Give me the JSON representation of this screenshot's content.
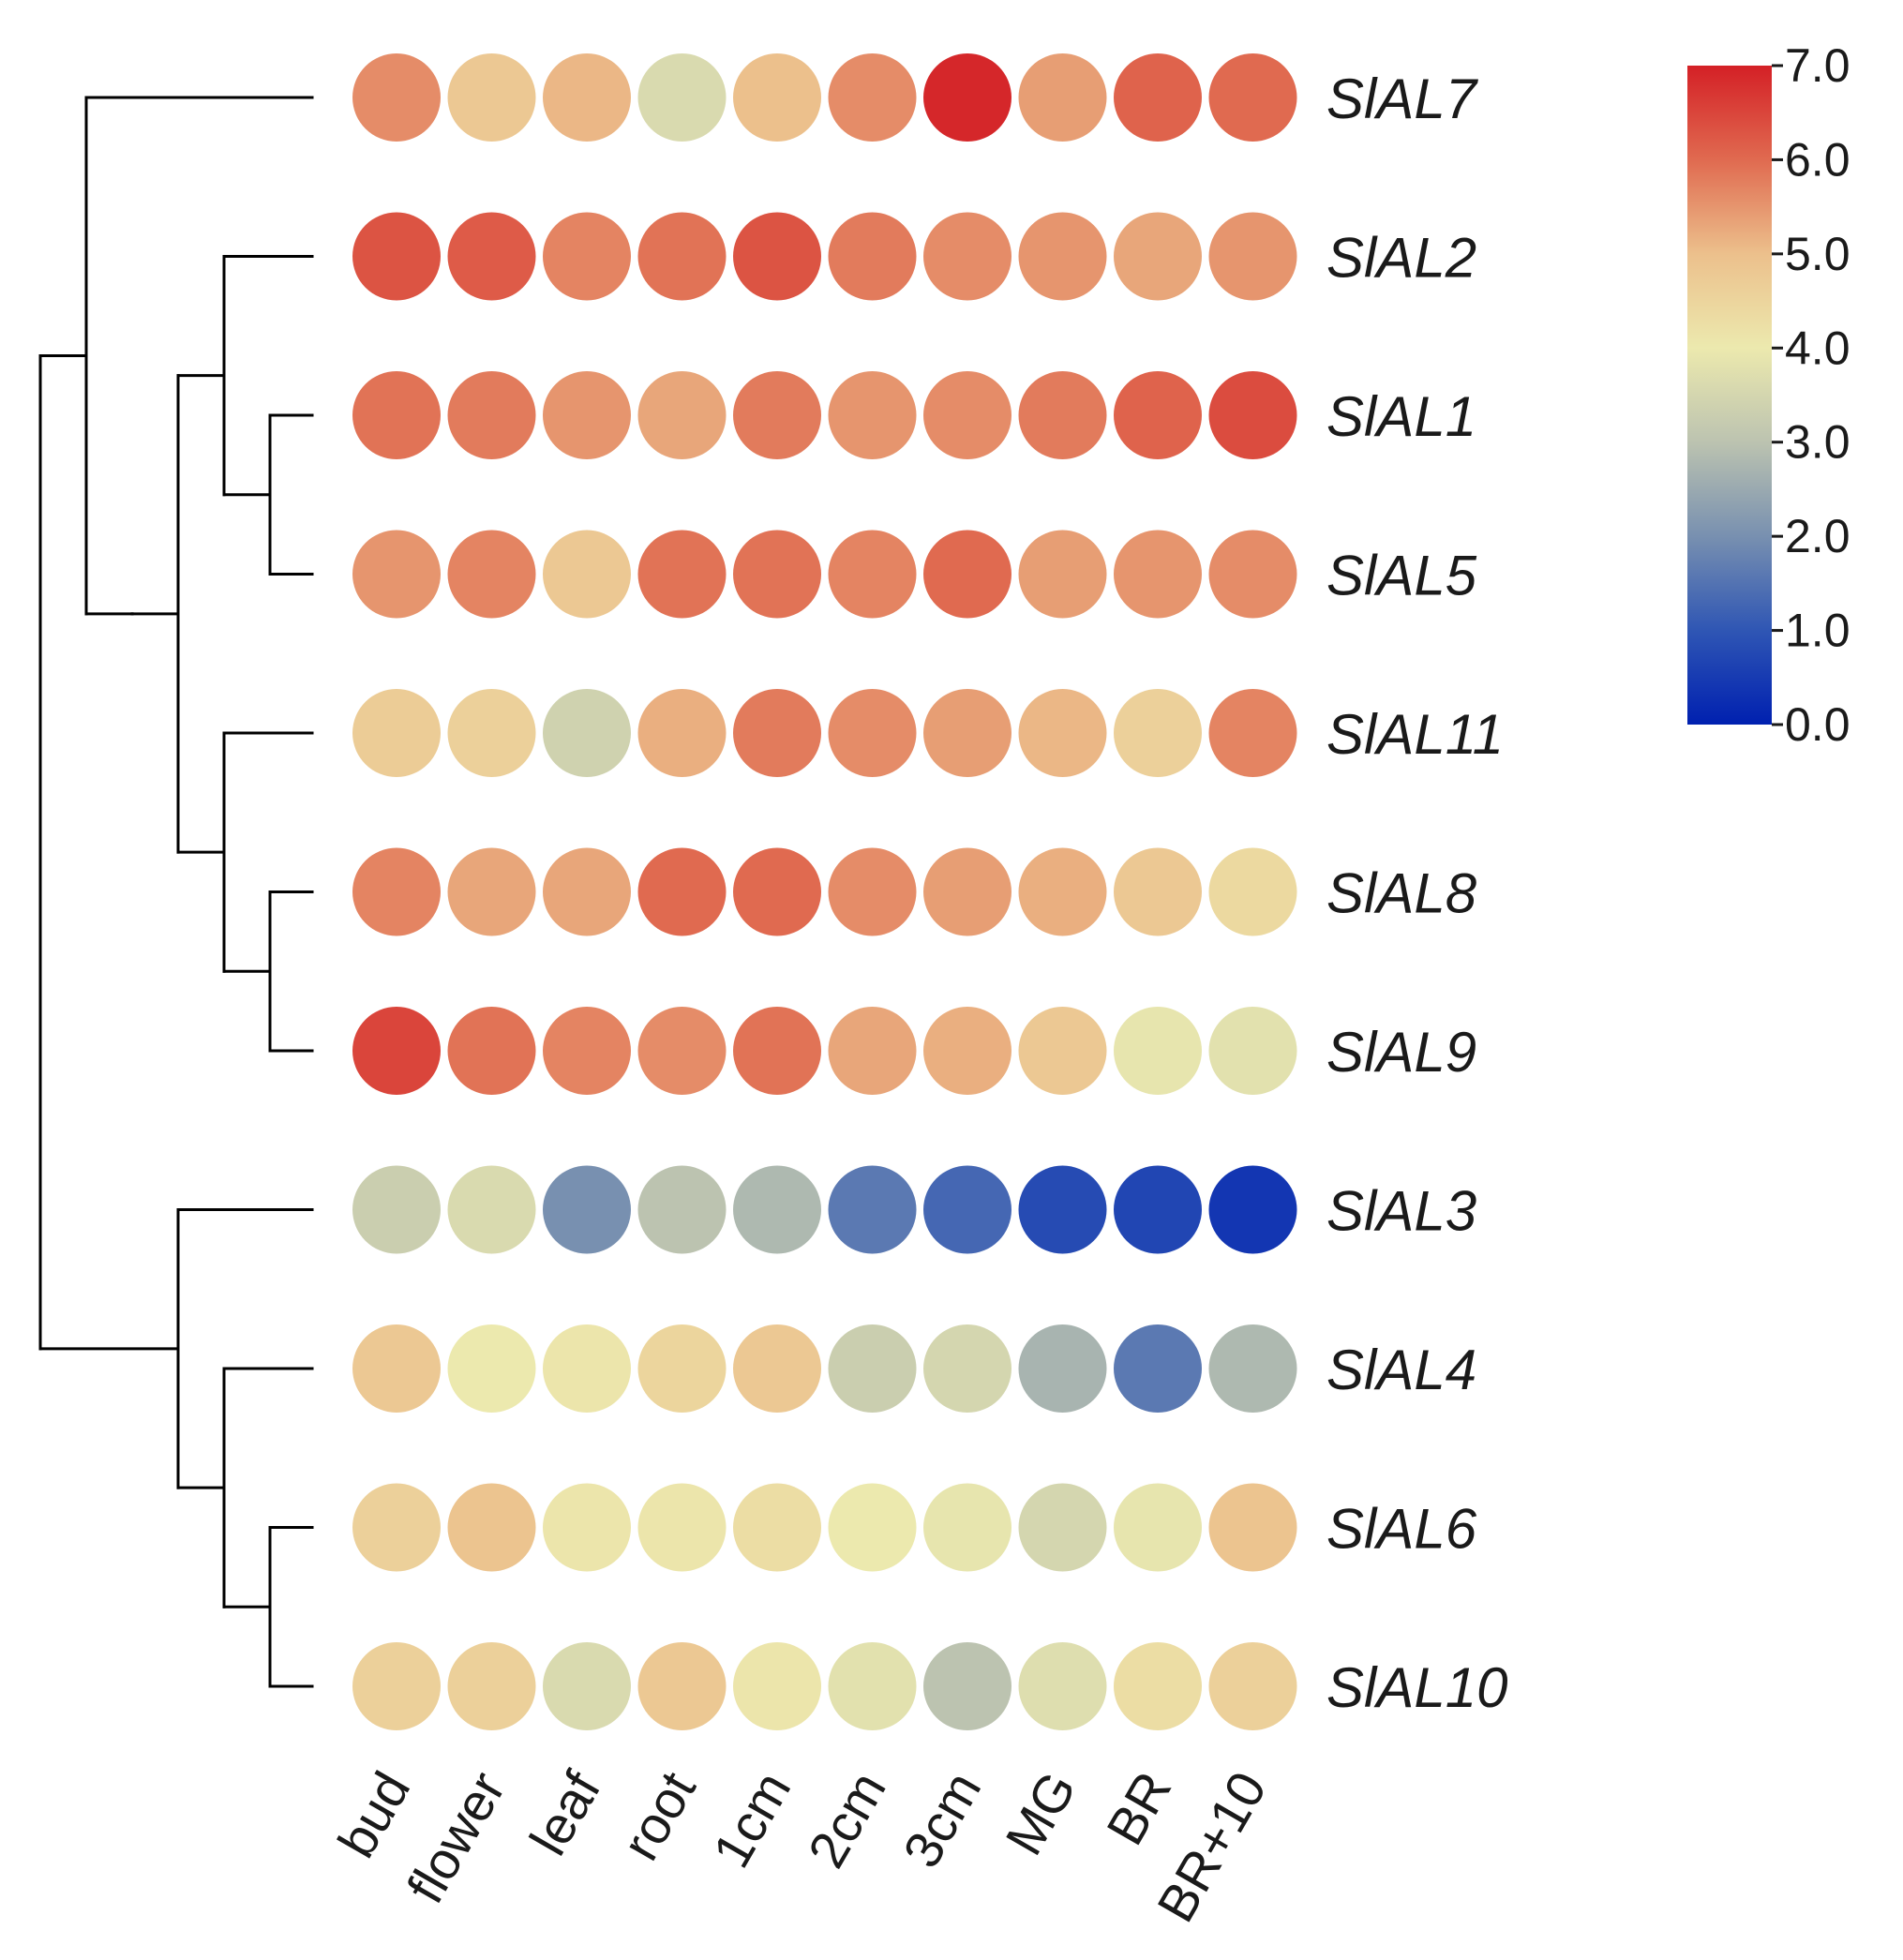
{
  "chart_data": {
    "type": "heatmap",
    "marker": "circle",
    "columns": [
      "bud",
      "flower",
      "leaf",
      "root",
      "1cm",
      "2cm",
      "3cm",
      "MG",
      "BR",
      "BR+10"
    ],
    "rows": [
      {
        "gene": "SlAL7",
        "values": [
          5.6,
          4.8,
          5.1,
          3.6,
          5.0,
          5.6,
          6.9,
          5.4,
          6.1,
          6.0
        ]
      },
      {
        "gene": "SlAL2",
        "values": [
          6.3,
          6.2,
          5.7,
          5.9,
          6.3,
          5.8,
          5.6,
          5.5,
          5.3,
          5.5
        ]
      },
      {
        "gene": "SlAL1",
        "values": [
          5.9,
          5.8,
          5.5,
          5.3,
          5.8,
          5.5,
          5.6,
          5.8,
          6.1,
          6.4
        ]
      },
      {
        "gene": "SlAL5",
        "values": [
          5.5,
          5.7,
          4.8,
          5.9,
          5.9,
          5.7,
          6.0,
          5.4,
          5.5,
          5.6
        ]
      },
      {
        "gene": "SlAL11",
        "values": [
          4.7,
          4.6,
          3.4,
          5.2,
          5.8,
          5.6,
          5.4,
          5.1,
          4.6,
          5.7
        ]
      },
      {
        "gene": "SlAL8",
        "values": [
          5.7,
          5.3,
          5.3,
          6.0,
          6.0,
          5.6,
          5.4,
          5.2,
          4.8,
          4.4
        ]
      },
      {
        "gene": "SlAL9",
        "values": [
          6.5,
          5.9,
          5.7,
          5.6,
          5.9,
          5.3,
          5.2,
          4.8,
          3.9,
          3.8
        ]
      },
      {
        "gene": "SlAL3",
        "values": [
          3.3,
          3.6,
          2.0,
          3.0,
          2.8,
          1.6,
          1.3,
          0.8,
          0.7,
          0.4
        ]
      },
      {
        "gene": "SlAL4",
        "values": [
          4.8,
          4.0,
          4.1,
          4.5,
          4.8,
          3.3,
          3.5,
          2.7,
          1.6,
          2.8
        ]
      },
      {
        "gene": "SlAL6",
        "values": [
          4.6,
          4.9,
          4.1,
          4.1,
          4.3,
          4.0,
          3.9,
          3.5,
          3.9,
          4.9
        ]
      },
      {
        "gene": "SlAL10",
        "values": [
          4.6,
          4.6,
          3.6,
          4.8,
          4.1,
          3.8,
          3.0,
          3.7,
          4.3,
          4.6
        ]
      }
    ],
    "colorbar": {
      "min": 0.0,
      "max": 7.0,
      "ticks": [
        "0.0",
        "1.0",
        "2.0",
        "3.0",
        "4.0",
        "5.0",
        "6.0",
        "7.0"
      ],
      "colormap": [
        {
          "value": 0.0,
          "color": "#0020b0"
        },
        {
          "value": 1.0,
          "color": "#2f56b4"
        },
        {
          "value": 2.0,
          "color": "#7890b0"
        },
        {
          "value": 3.0,
          "color": "#bcc3b0"
        },
        {
          "value": 4.0,
          "color": "#ece9ae"
        },
        {
          "value": 5.0,
          "color": "#ecc08c"
        },
        {
          "value": 6.0,
          "color": "#e06a50"
        },
        {
          "value": 7.0,
          "color": "#d42026"
        }
      ]
    },
    "dendrogram": {
      "orientation": "left",
      "tree": [
        [
          0,
          [
            [
              [
                1,
                [
                  2,
                  3
                ]
              ],
              [
                4,
                [
                  5,
                  6
                ]
              ]
            ]
          ]
        ],
        [
          7,
          [
            8,
            [
              9,
              10
            ]
          ]
        ]
      ]
    }
  }
}
